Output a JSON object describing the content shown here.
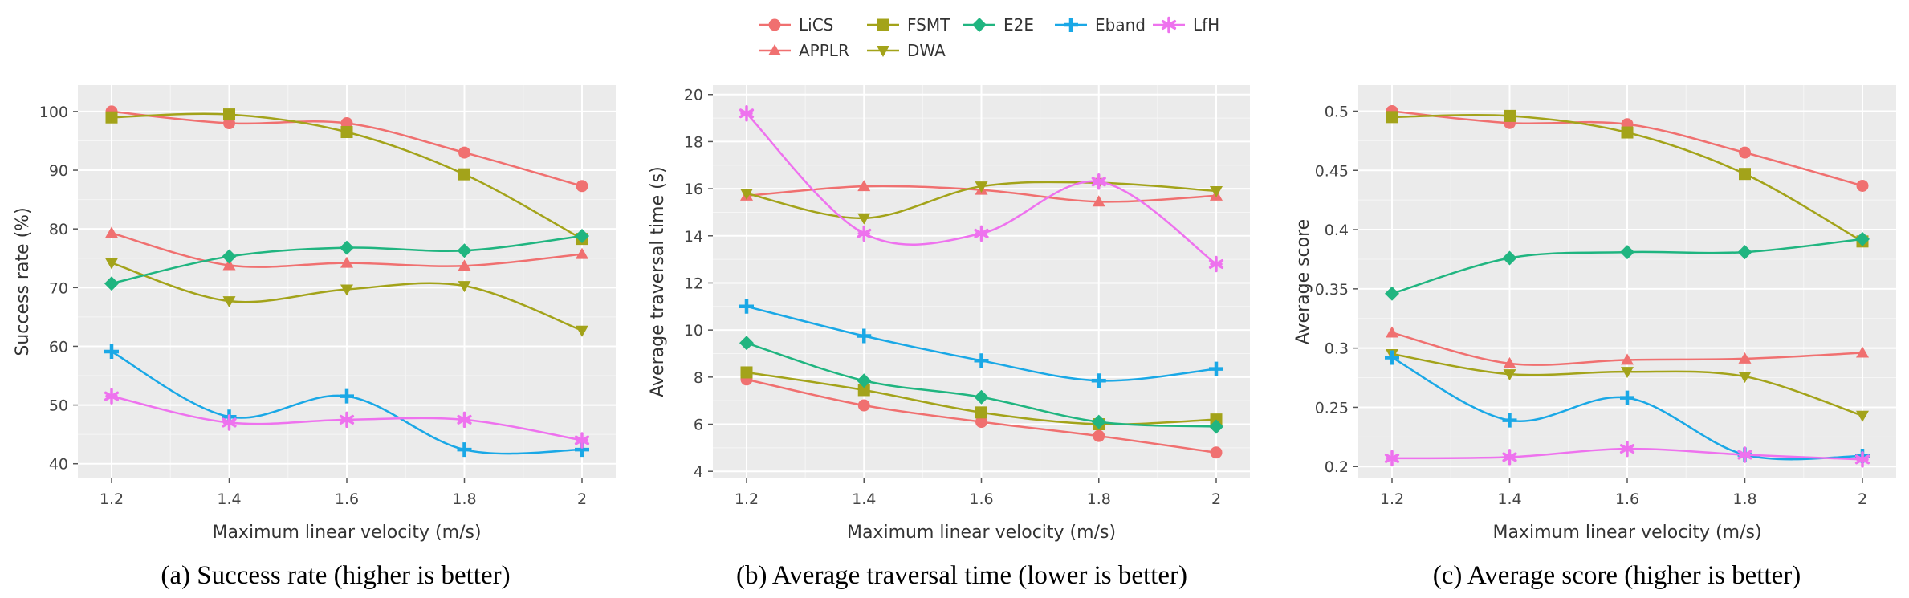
{
  "legend": {
    "LiCS": {
      "color": "#F07070",
      "marker": "circle"
    },
    "APPLR": {
      "color": "#F07070",
      "marker": "triangle-up"
    },
    "FSMT": {
      "color": "#A3A31A",
      "marker": "square"
    },
    "DWA": {
      "color": "#A3A31A",
      "marker": "triangle-down"
    },
    "E2E": {
      "color": "#20B580",
      "marker": "diamond"
    },
    "Eband": {
      "color": "#1AA8E6",
      "marker": "plus"
    },
    "LfH": {
      "color": "#EE72EE",
      "marker": "asterisk"
    }
  },
  "chart_data": [
    {
      "type": "line",
      "caption": "(a) Success rate (higher is better)",
      "xlabel": "Maximum linear velocity (m/s)",
      "ylabel": "Success rate (%)",
      "x": [
        1.2,
        1.4,
        1.6,
        1.8,
        2
      ],
      "xticks": [
        "1.2",
        "1.4",
        "1.6",
        "1.8",
        "2"
      ],
      "yticks": [
        40,
        50,
        60,
        70,
        80,
        90,
        100
      ],
      "ylim": [
        37.5,
        104.5
      ],
      "series": [
        {
          "name": "LiCS",
          "values": [
            100,
            98,
            98,
            93,
            87.3
          ]
        },
        {
          "name": "APPLR",
          "values": [
            79.3,
            73.8,
            74.2,
            73.7,
            75.7
          ]
        },
        {
          "name": "FSMT",
          "values": [
            99,
            99.5,
            96.5,
            89.3,
            78.3
          ]
        },
        {
          "name": "DWA",
          "values": [
            74.2,
            67.7,
            69.7,
            70.3,
            62.7
          ]
        },
        {
          "name": "E2E",
          "values": [
            70.7,
            75.3,
            76.8,
            76.3,
            78.8
          ]
        },
        {
          "name": "Eband",
          "values": [
            59.1,
            48,
            51.5,
            42.4,
            42.4
          ]
        },
        {
          "name": "LfH",
          "values": [
            51.5,
            47,
            47.5,
            47.5,
            44
          ]
        }
      ]
    },
    {
      "type": "line",
      "caption": "(b) Average traversal time (lower is better)",
      "xlabel": "Maximum linear velocity (m/s)",
      "ylabel": "Average traversal time (s)",
      "x": [
        1.2,
        1.4,
        1.6,
        1.8,
        2
      ],
      "xticks": [
        "1.2",
        "1.4",
        "1.6",
        "1.8",
        "2"
      ],
      "yticks": [
        4,
        6,
        8,
        10,
        12,
        14,
        16,
        18,
        20
      ],
      "ylim": [
        3.7,
        20.4
      ],
      "series": [
        {
          "name": "LiCS",
          "values": [
            7.9,
            6.8,
            6.1,
            5.5,
            4.8
          ]
        },
        {
          "name": "APPLR",
          "values": [
            15.7,
            16.1,
            15.95,
            15.45,
            15.7
          ]
        },
        {
          "name": "FSMT",
          "values": [
            8.2,
            7.45,
            6.5,
            6,
            6.2
          ]
        },
        {
          "name": "DWA",
          "values": [
            15.8,
            14.75,
            16.1,
            16.25,
            15.9
          ]
        },
        {
          "name": "E2E",
          "values": [
            9.45,
            7.85,
            7.15,
            6.1,
            5.9
          ]
        },
        {
          "name": "Eband",
          "values": [
            11,
            9.75,
            8.7,
            7.85,
            8.35
          ]
        },
        {
          "name": "LfH",
          "values": [
            19.2,
            14.1,
            14.1,
            16.3,
            12.8
          ]
        }
      ]
    },
    {
      "type": "line",
      "caption": "(c) Average score (higher is better)",
      "xlabel": "Maximum linear velocity (m/s)",
      "ylabel": "Average score",
      "x": [
        1.2,
        1.4,
        1.6,
        1.8,
        2
      ],
      "xticks": [
        "1.2",
        "1.4",
        "1.6",
        "1.8",
        "2"
      ],
      "yticks": [
        "0.2",
        "0.25",
        "0.3",
        "0.35",
        "0.4",
        "0.45",
        "0.5"
      ],
      "ylim": [
        0.19,
        0.522
      ],
      "series": [
        {
          "name": "LiCS",
          "values": [
            0.5,
            0.49,
            0.489,
            0.465,
            0.437
          ]
        },
        {
          "name": "APPLR",
          "values": [
            0.313,
            0.287,
            0.29,
            0.291,
            0.296
          ]
        },
        {
          "name": "FSMT",
          "values": [
            0.495,
            0.496,
            0.482,
            0.447,
            0.39
          ]
        },
        {
          "name": "DWA",
          "values": [
            0.295,
            0.278,
            0.28,
            0.276,
            0.243
          ]
        },
        {
          "name": "E2E",
          "values": [
            0.346,
            0.376,
            0.381,
            0.381,
            0.392
          ]
        },
        {
          "name": "Eband",
          "values": [
            0.292,
            0.239,
            0.258,
            0.21,
            0.209
          ]
        },
        {
          "name": "LfH",
          "values": [
            0.207,
            0.208,
            0.215,
            0.21,
            0.206
          ]
        }
      ]
    }
  ]
}
